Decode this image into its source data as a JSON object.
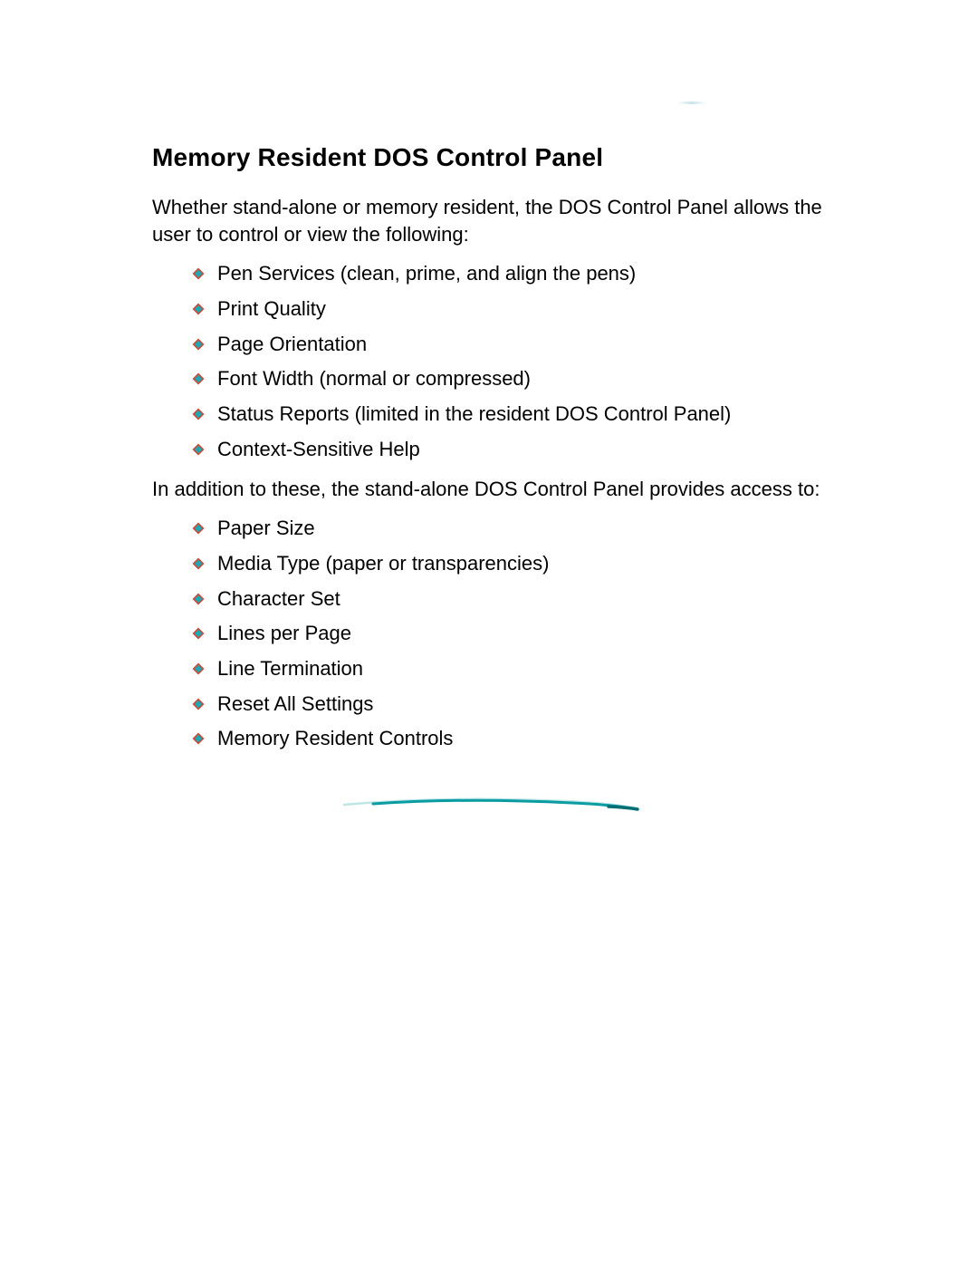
{
  "heading": "Memory Resident DOS Control Panel",
  "intro": "Whether stand-alone or memory resident, the DOS Control Panel allows the user to control or view the following:",
  "list1": [
    "Pen Services (clean, prime, and align the pens)",
    "Print Quality",
    "Page Orientation",
    "Font Width (normal or compressed)",
    "Status Reports (limited in the resident  DOS Control Panel)",
    "Context-Sensitive Help"
  ],
  "midText": "In addition to these, the stand-alone DOS Control Panel provides access to:",
  "list2": [
    "Paper Size",
    "Media Type (paper or transparencies)",
    "Character Set",
    "Lines per Page",
    "Line Termination",
    "Reset All Settings",
    "Memory Resident Controls"
  ],
  "style": {
    "page_bg": "#ffffff",
    "heading_color": "#000000",
    "heading_fontsize": 28,
    "body_fontsize": 22,
    "body_color": "#000000",
    "bullet_diamond_outer": "#c94a3b",
    "bullet_diamond_inner": "#1fa8b0",
    "divider_color_light": "#bfe6e6",
    "divider_color_dark": "#0a9ca3",
    "top_smudge_color": "#64b4be"
  }
}
